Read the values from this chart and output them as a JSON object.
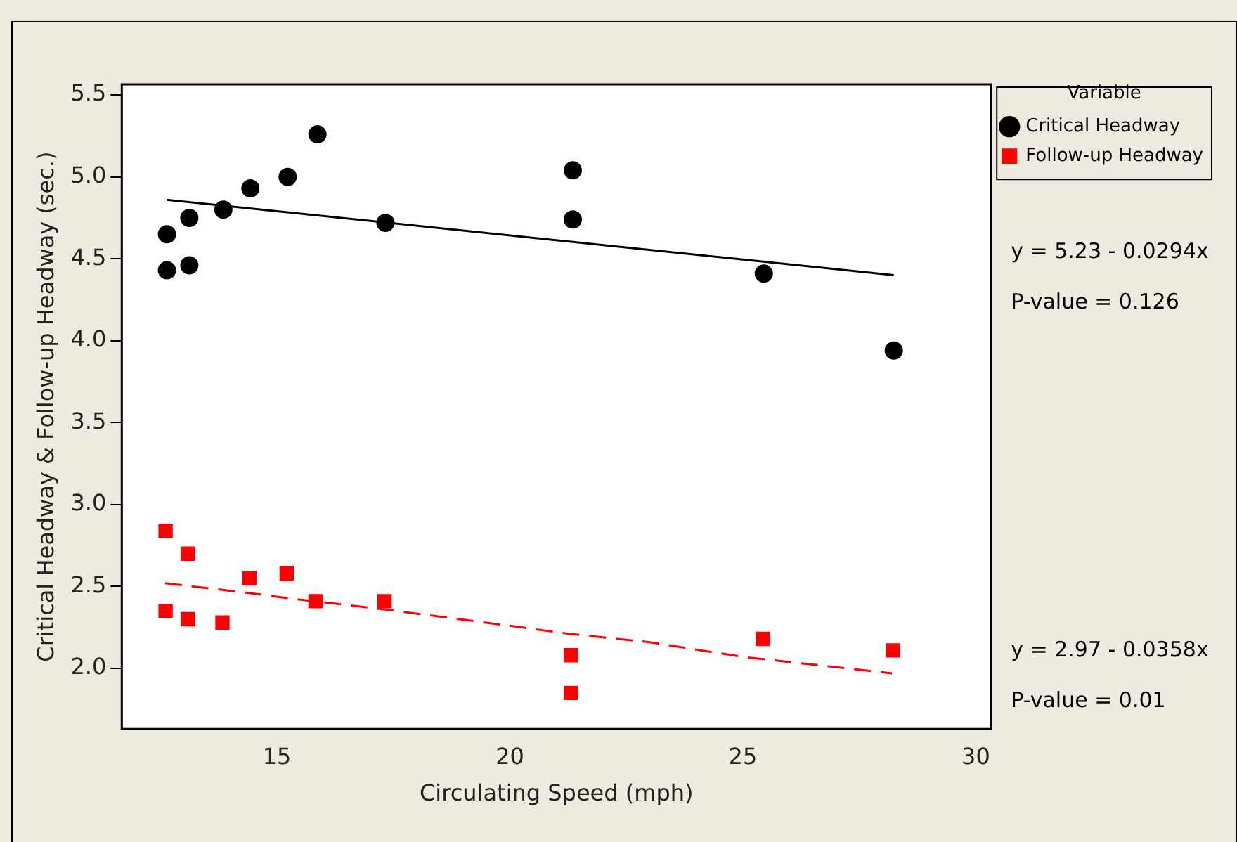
{
  "chart_data": {
    "type": "scatter",
    "xlabel": "Circulating Speed (mph)",
    "ylabel": "Critical Headway & Follow-up Headway (sec.)",
    "legend_title": "Variable",
    "legend": "top right",
    "xlim": [
      11.67,
      30.33
    ],
    "ylim": [
      1.63,
      5.565
    ],
    "xticks": [
      15,
      20,
      25,
      30
    ],
    "yticks": [
      {
        "value": 2,
        "label": "2.0"
      },
      2.5,
      {
        "value": 3,
        "label": "3.0"
      },
      3.5,
      {
        "value": 4,
        "label": "4.0"
      },
      4.5,
      {
        "value": 5,
        "label": "5.0"
      },
      5.5
    ],
    "annotations": [
      "y = 5.23 - 0.0294x",
      "P-value = 0.126",
      "y = 2.97 - 0.0358x",
      "P-value = 0.01"
    ],
    "series": [
      {
        "name": "Critical Headway",
        "marker": "circle",
        "color": "#000000",
        "x": [
          12.64,
          12.64,
          13.12,
          13.12,
          13.85,
          14.43,
          15.23,
          15.87,
          17.33,
          21.35,
          21.35,
          25.45,
          28.24
        ],
        "values": [
          4.65,
          4.43,
          4.75,
          4.46,
          4.8,
          4.93,
          5.0,
          5.26,
          4.72,
          5.04,
          4.74,
          4.41,
          3.94
        ]
      },
      {
        "name": "Follow-up Headway",
        "marker": "square",
        "color": "#ff0000",
        "x": [
          12.61,
          12.61,
          13.09,
          13.09,
          13.83,
          14.41,
          15.21,
          15.83,
          17.31,
          21.31,
          21.31,
          25.43,
          28.22
        ],
        "values": [
          2.84,
          2.35,
          2.7,
          2.3,
          2.28,
          2.55,
          2.58,
          2.41,
          2.41,
          2.08,
          1.85,
          2.18,
          2.11
        ]
      },
      {
        "type": "line",
        "line_style": "solid",
        "color": "#000000",
        "x": [
          12.64,
          28.24
        ],
        "values": [
          4.86,
          4.4
        ]
      },
      {
        "type": "line",
        "line_style": "dashed",
        "color": "#ff0000",
        "x": [
          12.6,
          14.4,
          15.2,
          17.3,
          20,
          21.3,
          23,
          25,
          28.2
        ],
        "values": [
          2.52,
          2.46,
          2.43,
          2.36,
          2.26,
          2.21,
          2.16,
          2.07,
          1.97
        ]
      }
    ]
  }
}
